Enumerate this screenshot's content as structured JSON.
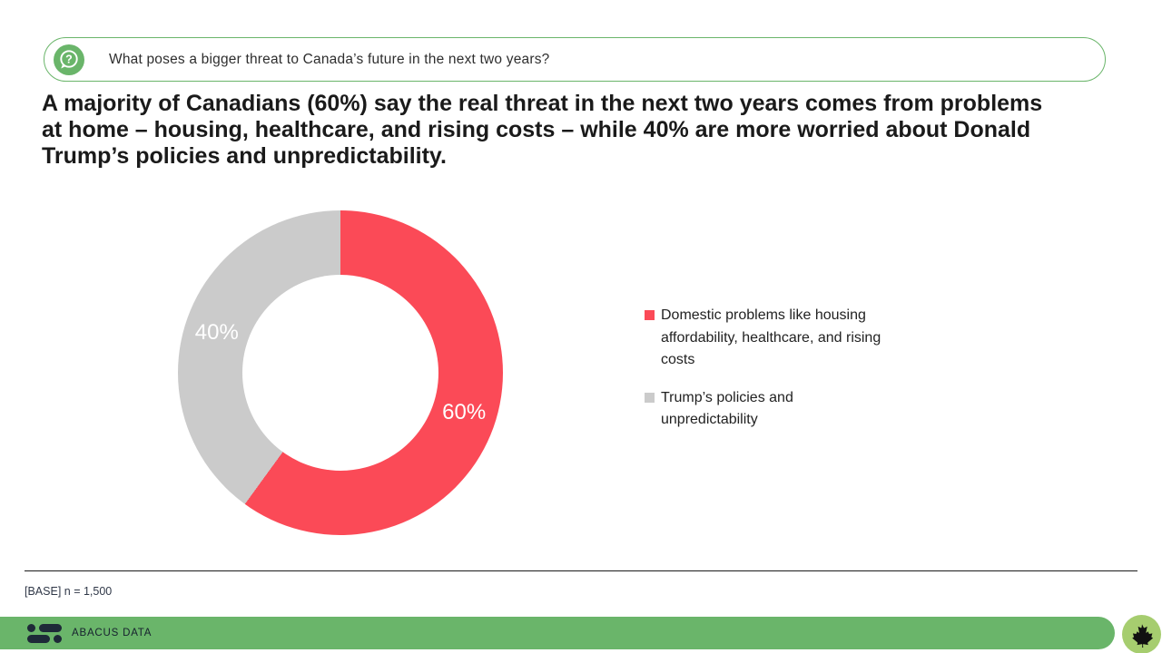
{
  "question": {
    "icon": "question-bubble-icon",
    "text": "What poses a bigger threat to Canada’s future in the next two years?"
  },
  "headline": "A majority of Canadians (60%) say the real threat in the next two years comes from problems at home – housing, healthcare, and rising costs – while 40% are more worried about Donald Trump’s policies and unpredictability.",
  "chart_data": {
    "type": "pie",
    "subtype": "donut",
    "categories": [
      "Domestic problems like housing affordability, healthcare, and rising costs",
      "Trump’s policies and unpredictability"
    ],
    "values": [
      60,
      40
    ],
    "labels": [
      "60%",
      "40%"
    ],
    "colors": [
      "#fb4a57",
      "#cbcbcb"
    ],
    "start_angle_deg": 0,
    "direction": "clockwise",
    "inner_radius_ratio": 0.6,
    "label_radius_ratio": 0.8,
    "legend_position": "right",
    "title": ""
  },
  "base_note": "[BASE] n = 1,500",
  "footer": {
    "brand": "ABACUS DATA",
    "logo_icon": "abacus-data-logo",
    "badge_icon": "maple-leaf-icon"
  },
  "colors": {
    "brand_green": "#6ab56a",
    "badge_green": "#a6cd6f",
    "slice_red": "#fb4a57",
    "slice_gray": "#cbcbcb",
    "logo_navy": "#1e2a38",
    "text_dark": "#1a1a1a"
  }
}
